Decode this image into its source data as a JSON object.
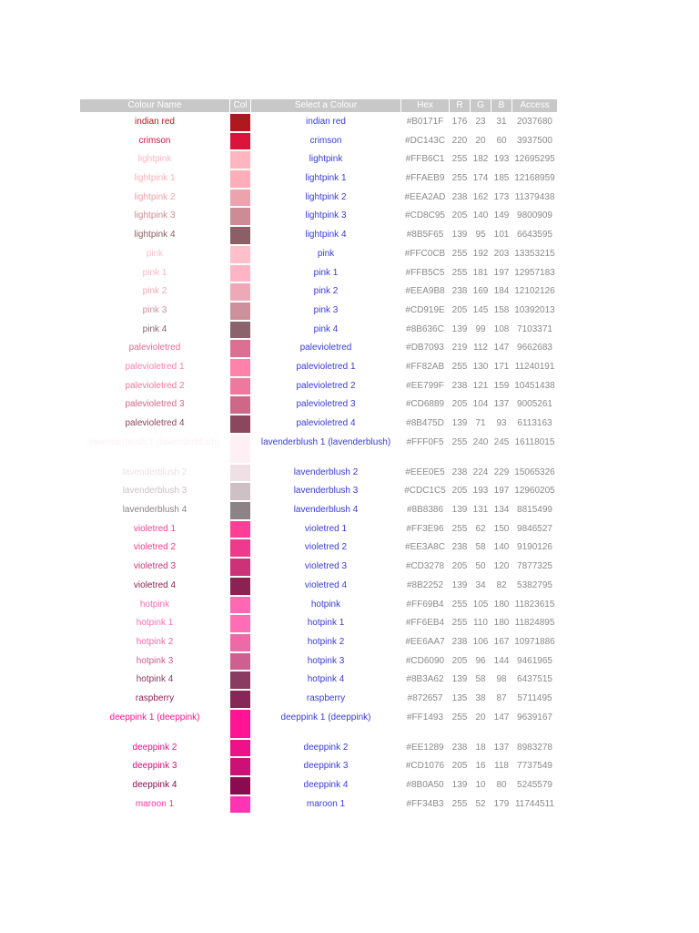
{
  "table": {
    "headers": [
      "Colour Name",
      "Col",
      "Select a Colour",
      "Hex",
      "R",
      "G",
      "B",
      "Access"
    ],
    "rows": [
      [
        "indian red",
        "#B0171F",
        176,
        23,
        31,
        2037680
      ],
      [
        "crimson",
        "#DC143C",
        220,
        20,
        60,
        3937500
      ],
      [
        "lightpink",
        "#FFB6C1",
        255,
        182,
        193,
        12695295
      ],
      [
        "lightpink 1",
        "#FFAEB9",
        255,
        174,
        185,
        12168959
      ],
      [
        "lightpink 2",
        "#EEA2AD",
        238,
        162,
        173,
        11379438
      ],
      [
        "lightpink 3",
        "#CD8C95",
        205,
        140,
        149,
        9800909
      ],
      [
        "lightpink 4",
        "#8B5F65",
        139,
        95,
        101,
        6643595
      ],
      [
        "pink",
        "#FFC0CB",
        255,
        192,
        203,
        13353215
      ],
      [
        "pink 1",
        "#FFB5C5",
        255,
        181,
        197,
        12957183
      ],
      [
        "pink 2",
        "#EEA9B8",
        238,
        169,
        184,
        12102126
      ],
      [
        "pink 3",
        "#CD919E",
        205,
        145,
        158,
        10392013
      ],
      [
        "pink 4",
        "#8B636C",
        139,
        99,
        108,
        7103371
      ],
      [
        "palevioletred",
        "#DB7093",
        219,
        112,
        147,
        9662683
      ],
      [
        "palevioletred 1",
        "#FF82AB",
        255,
        130,
        171,
        11240191
      ],
      [
        "palevioletred 2",
        "#EE799F",
        238,
        121,
        159,
        10451438
      ],
      [
        "palevioletred 3",
        "#CD6889",
        205,
        104,
        137,
        9005261
      ],
      [
        "palevioletred 4",
        "#8B475D",
        139,
        71,
        93,
        6113163
      ],
      [
        "lavenderblush 1 (lavenderblush)",
        "#FFF0F5",
        255,
        240,
        245,
        16118015
      ],
      [
        "lavenderblush 2",
        "#EEE0E5",
        238,
        224,
        229,
        15065326
      ],
      [
        "lavenderblush 3",
        "#CDC1C5",
        205,
        193,
        197,
        12960205
      ],
      [
        "lavenderblush 4",
        "#8B8386",
        139,
        131,
        134,
        8815499
      ],
      [
        "violetred 1",
        "#FF3E96",
        255,
        62,
        150,
        9846527
      ],
      [
        "violetred 2",
        "#EE3A8C",
        238,
        58,
        140,
        9190126
      ],
      [
        "violetred 3",
        "#CD3278",
        205,
        50,
        120,
        7877325
      ],
      [
        "violetred 4",
        "#8B2252",
        139,
        34,
        82,
        5382795
      ],
      [
        "hotpink",
        "#FF69B4",
        255,
        105,
        180,
        11823615
      ],
      [
        "hotpink 1",
        "#FF6EB4",
        255,
        110,
        180,
        11824895
      ],
      [
        "hotpink 2",
        "#EE6AA7",
        238,
        106,
        167,
        10971886
      ],
      [
        "hotpink 3",
        "#CD6090",
        205,
        96,
        144,
        9461965
      ],
      [
        "hotpink 4",
        "#8B3A62",
        139,
        58,
        98,
        6437515
      ],
      [
        "raspberry",
        "#872657",
        135,
        38,
        87,
        5711495
      ],
      [
        "deeppink 1 (deeppink)",
        "#FF1493",
        255,
        20,
        147,
        9639167
      ],
      [
        "deeppink 2",
        "#EE1289",
        238,
        18,
        137,
        8983278
      ],
      [
        "deeppink 3",
        "#CD1076",
        205,
        16,
        118,
        7737549
      ],
      [
        "deeppink 4",
        "#8B0A50",
        139,
        10,
        80,
        5245579
      ],
      [
        "maroon 1",
        "#FF34B3",
        255,
        52,
        179,
        11744511
      ]
    ]
  }
}
